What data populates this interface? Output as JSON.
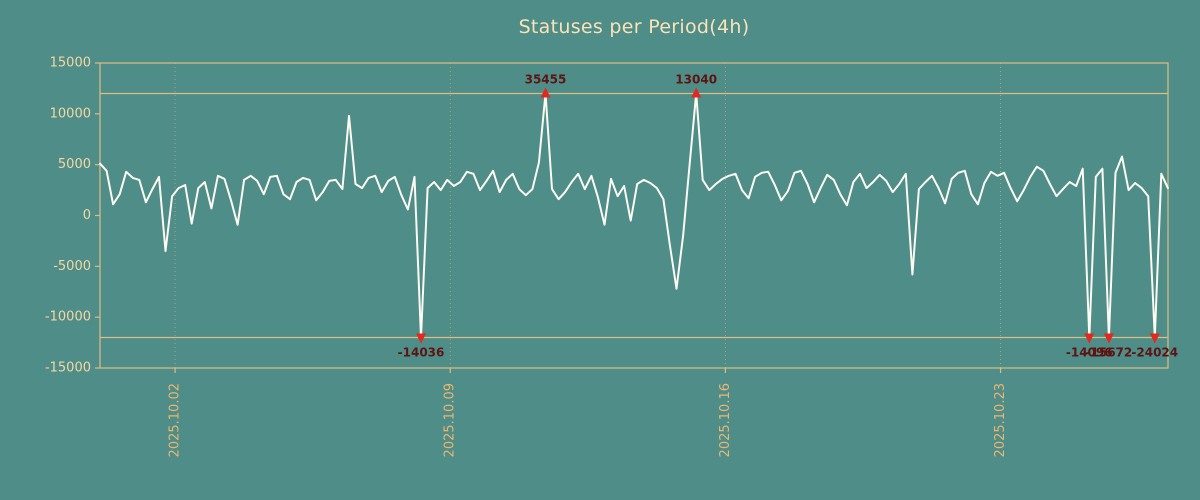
{
  "colors": {
    "background": "#4e8d88",
    "frame": "#e0bd83",
    "grid": "#e0bd83",
    "title_text": "#fbe2b7",
    "ytick_text": "#f5d7a4",
    "xtick_text": "#edb671",
    "line": "#fdfaf1",
    "marker": "#e3281e",
    "marker_label": "#5d1412"
  },
  "chart_data": {
    "type": "line",
    "title": "Statuses per Period(4h)",
    "period_hours": 4,
    "xlabel": "",
    "ylabel": "",
    "ylim": [
      -15000,
      15000
    ],
    "x_end_day": 27.17,
    "clip_limit": 12000,
    "grid": "vertical-dotted",
    "legend": "none",
    "y_ticks": [
      {
        "value": 15000,
        "label": "15000"
      },
      {
        "value": 10000,
        "label": "10000"
      },
      {
        "value": 5000,
        "label": "5000"
      },
      {
        "value": 0,
        "label": "0"
      },
      {
        "value": -5000,
        "label": "-5000"
      },
      {
        "value": -10000,
        "label": "-10000"
      },
      {
        "value": -15000,
        "label": "-15000"
      }
    ],
    "x_ticks": [
      {
        "day": 1.91,
        "label": "2025.10.02"
      },
      {
        "day": 8.91,
        "label": "2025.10.09"
      },
      {
        "day": 15.91,
        "label": "2025.10.16"
      },
      {
        "day": 22.91,
        "label": "2025.10.23"
      }
    ],
    "values": [
      5100,
      4400,
      1100,
      2100,
      4300,
      3700,
      3500,
      1300,
      2600,
      3800,
      -3500,
      1900,
      2700,
      3000,
      -800,
      2700,
      3300,
      700,
      3900,
      3600,
      1500,
      -900,
      3500,
      3900,
      3400,
      2100,
      3800,
      3900,
      2100,
      1600,
      3300,
      3700,
      3500,
      1500,
      2300,
      3400,
      3500,
      2600,
      9800,
      3100,
      2700,
      3700,
      3900,
      2300,
      3400,
      3800,
      2000,
      600,
      3800,
      -14036,
      2700,
      3300,
      2500,
      3500,
      2900,
      3300,
      4300,
      4100,
      2500,
      3400,
      4400,
      2300,
      3500,
      4100,
      2600,
      2000,
      2600,
      5200,
      35455,
      2600,
      1600,
      2300,
      3300,
      4100,
      2600,
      3900,
      1800,
      -900,
      3600,
      1900,
      2900,
      -500,
      3100,
      3500,
      3200,
      2700,
      1600,
      -3000,
      -7200,
      -2000,
      5000,
      13040,
      3500,
      2500,
      3100,
      3600,
      3900,
      4100,
      2500,
      1700,
      3800,
      4200,
      4300,
      3000,
      1500,
      2400,
      4200,
      4400,
      3100,
      1300,
      2700,
      4000,
      3500,
      2100,
      1000,
      3300,
      4100,
      2700,
      3300,
      4000,
      3400,
      2300,
      3100,
      4100,
      -5800,
      2600,
      3300,
      3900,
      2700,
      1200,
      3600,
      4200,
      4400,
      2100,
      1100,
      3200,
      4300,
      3900,
      4200,
      2700,
      1400,
      2500,
      3800,
      4800,
      4400,
      3100,
      1900,
      2600,
      3300,
      2900,
      4600,
      -14096,
      3800,
      4600,
      -15672,
      4200,
      5800,
      2500,
      3200,
      2700,
      1900,
      -24024,
      4100,
      2700
    ],
    "annotations": {
      "clipped_peaks": [
        {
          "value": 35455,
          "label": "35455"
        },
        {
          "value": 13040,
          "label": "13040"
        }
      ],
      "clipped_troughs": [
        {
          "value": -14036,
          "label": "-14036"
        },
        {
          "value": -14096,
          "label": "-14096"
        },
        {
          "value": -15672,
          "label": "-15672"
        },
        {
          "value": -24024,
          "label": "-24024"
        }
      ]
    }
  }
}
